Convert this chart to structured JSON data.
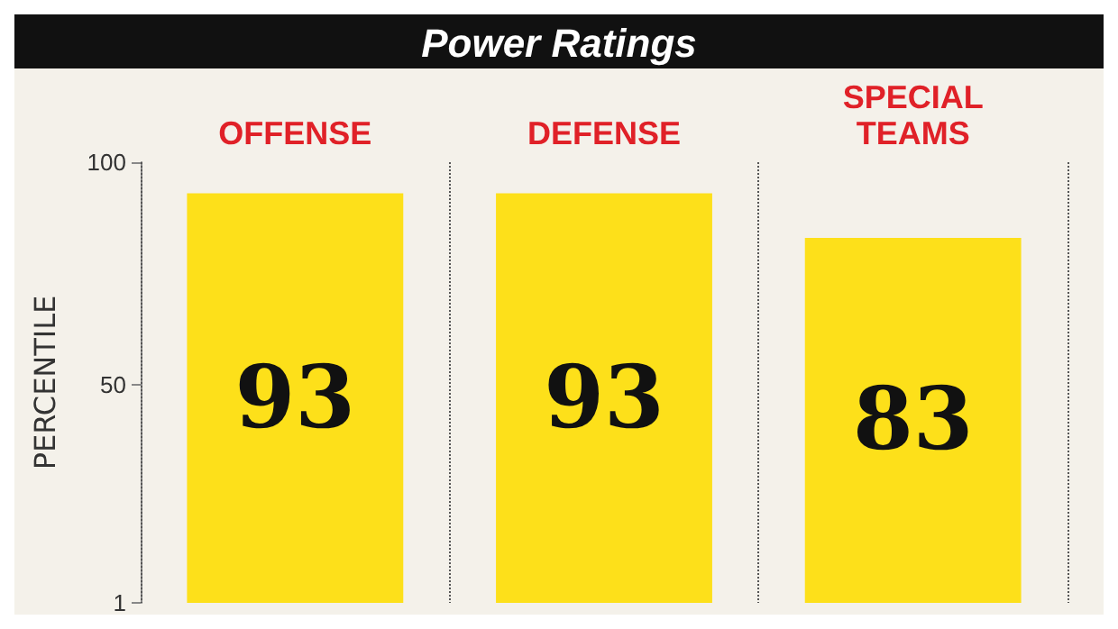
{
  "chart_data": {
    "type": "bar",
    "title": "Power Ratings",
    "ylabel": "PERCENTILE",
    "categories": [
      "OFFENSE",
      "DEFENSE",
      "SPECIAL\nTEAMS"
    ],
    "values": [
      93,
      93,
      83
    ],
    "color": "#fde01a",
    "ylim": [
      1,
      100
    ],
    "yticks": [
      1,
      50,
      100
    ],
    "grid": "x",
    "data_labels": true
  }
}
